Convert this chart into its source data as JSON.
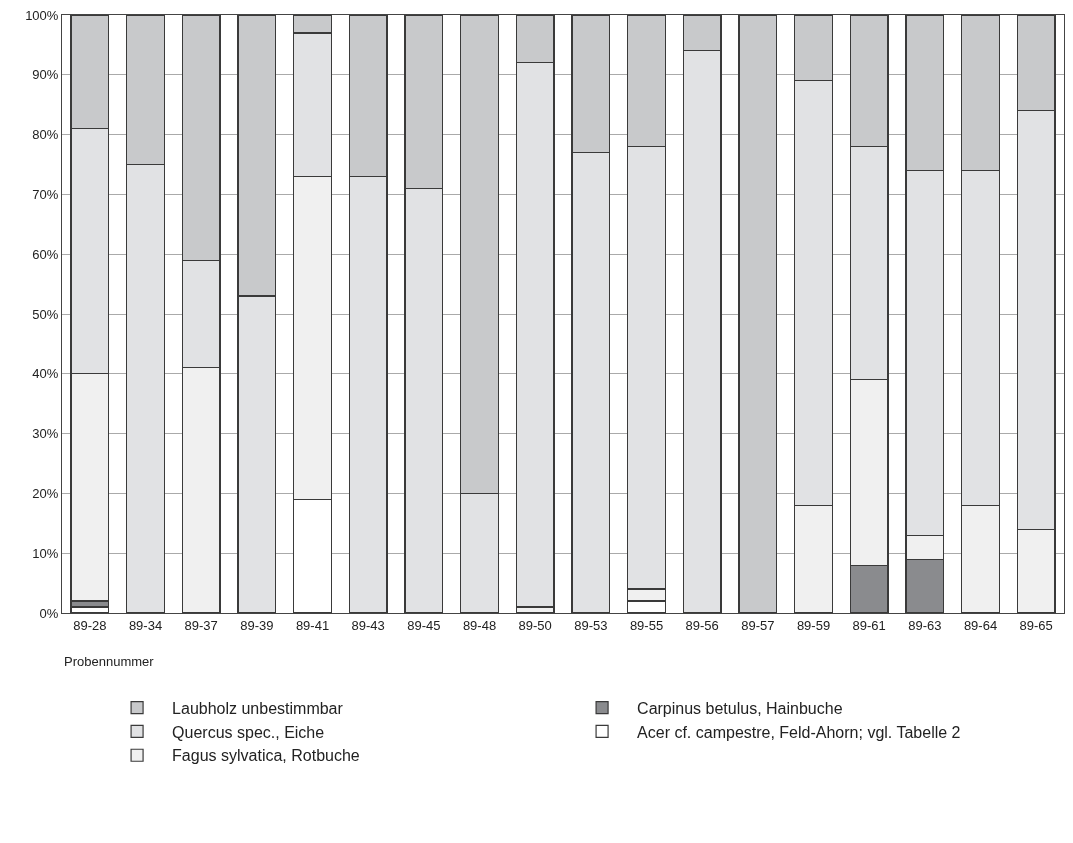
{
  "chart_data": {
    "type": "bar",
    "stacked": true,
    "xlabel": "Probennummer",
    "categories": [
      "89-28",
      "89-34",
      "89-37",
      "89-39",
      "89-41",
      "89-43",
      "89-45",
      "89-48",
      "89-50",
      "89-53",
      "89-55",
      "89-56",
      "89-57",
      "89-59",
      "89-61",
      "89-63",
      "89-64",
      "89-65"
    ],
    "series": [
      {
        "name": "Acer cf. campestre, Feld-Ahorn; vgl. Tabelle 2",
        "color": "#ffffff",
        "values": [
          1,
          0,
          0,
          0,
          19,
          0,
          0,
          0,
          0,
          0,
          2,
          0,
          0,
          0,
          0,
          0,
          0,
          0
        ]
      },
      {
        "name": "Carpinus betulus, Hainbuche",
        "color": "#8a8b8e",
        "values": [
          1,
          0,
          0,
          0,
          0,
          0,
          0,
          0,
          0,
          0,
          0,
          0,
          0,
          0,
          8,
          9,
          0,
          0
        ]
      },
      {
        "name": "Fagus sylvatica, Rotbuche",
        "color": "#f0f0f0",
        "values": [
          38,
          0,
          41,
          0,
          54,
          0,
          0,
          0,
          1,
          0,
          2,
          0,
          0,
          18,
          31,
          4,
          18,
          14
        ]
      },
      {
        "name": "Quercus spec., Eiche",
        "color": "#e1e2e4",
        "values": [
          41,
          75,
          18,
          53,
          24,
          73,
          71,
          20,
          91,
          77,
          74,
          94,
          0,
          71,
          39,
          61,
          56,
          70
        ]
      },
      {
        "name": "Laubholz unbestimmbar",
        "color": "#c8c9cb",
        "values": [
          19,
          25,
          41,
          47,
          3,
          27,
          29,
          80,
          8,
          23,
          22,
          6,
          100,
          11,
          22,
          26,
          26,
          16
        ]
      }
    ],
    "ylim": [
      0,
      100
    ],
    "yticks": [
      {
        "value": 0,
        "label": "0%"
      },
      {
        "value": 10,
        "label": "10%"
      },
      {
        "value": 20,
        "label": "20%"
      },
      {
        "value": 30,
        "label": "30%"
      },
      {
        "value": 40,
        "label": "40%"
      },
      {
        "value": 50,
        "label": "50%"
      },
      {
        "value": 60,
        "label": "60%"
      },
      {
        "value": 70,
        "label": "70%"
      },
      {
        "value": 80,
        "label": "80%"
      },
      {
        "value": 90,
        "label": "90%"
      },
      {
        "value": 100,
        "label": "100%"
      }
    ],
    "grid": "y",
    "legend": "bottom"
  }
}
